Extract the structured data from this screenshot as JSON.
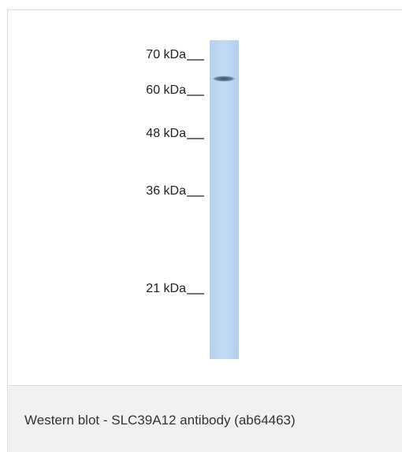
{
  "figure": {
    "markers": [
      "70 kDa",
      "60 kDa",
      "48 kDa",
      "36 kDa",
      "21 kDa"
    ],
    "caption": "Western blot - SLC39A12 antibody (ab64463)"
  }
}
